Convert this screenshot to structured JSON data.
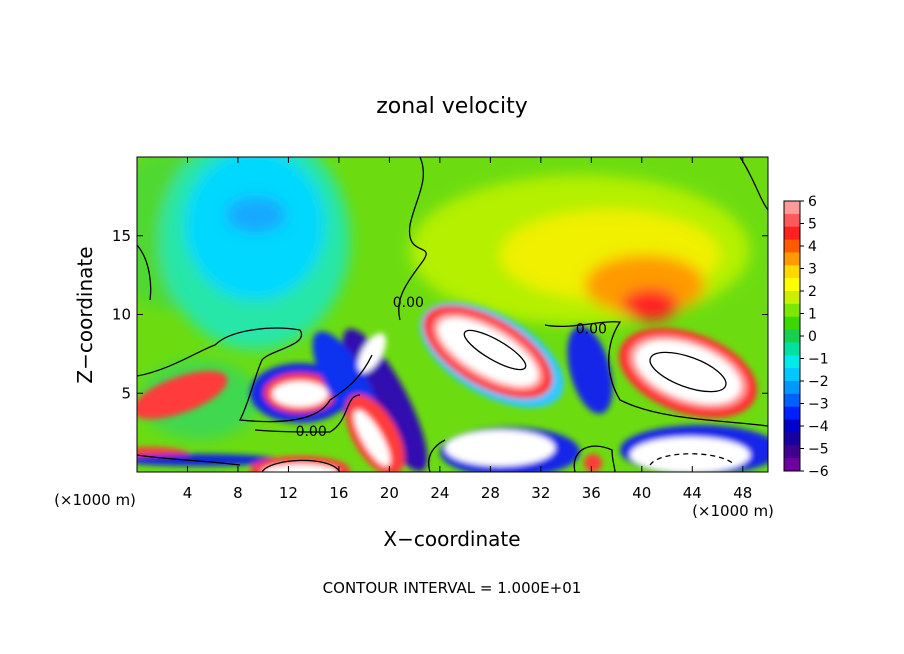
{
  "chart_data": {
    "type": "heatmap",
    "title": "zonal velocity",
    "xlabel": "X−coordinate",
    "ylabel": "Z−coordinate",
    "x_unit_left": "(×1000 m)",
    "x_unit_right": "(×1000 m)",
    "xlim": [
      0,
      50
    ],
    "ylim": [
      0,
      20
    ],
    "x_ticks": [
      4,
      8,
      12,
      16,
      20,
      24,
      28,
      32,
      36,
      40,
      44,
      48
    ],
    "y_ticks": [
      5,
      10,
      15
    ],
    "footer": "CONTOUR INTERVAL = 1.000E+01",
    "contour_label": "0.00",
    "contour_label_points": [
      {
        "x": 21.5,
        "y": 10.8
      },
      {
        "x": 36.0,
        "y": 9.1
      },
      {
        "x": 13.8,
        "y": 2.6
      }
    ],
    "colorbar": {
      "labels": [
        "6",
        "5",
        "4",
        "3",
        "2",
        "1",
        "0",
        "−1",
        "−2",
        "−3",
        "−4",
        "−5",
        "−6"
      ],
      "colors": [
        "#ff9a9a",
        "#ff5a5a",
        "#ff2020",
        "#ff5a00",
        "#ff9a00",
        "#ffd800",
        "#ffff00",
        "#c8f000",
        "#7ee600",
        "#3cd800",
        "#18d050",
        "#00e0a0",
        "#00eaea",
        "#00c8ff",
        "#0098ff",
        "#0060ff",
        "#0020ff",
        "#0000c8",
        "#1800a0",
        "#400090",
        "#7000a0"
      ]
    },
    "features": [
      {
        "kind": "strong positive core",
        "x": 27,
        "y": 7,
        "value": 6
      },
      {
        "kind": "strong positive core",
        "x": 43,
        "y": 6.5,
        "value": 6
      },
      {
        "kind": "strong positive core",
        "x": 13,
        "y": 5,
        "value": 6
      },
      {
        "kind": "strong positive core",
        "x": 20.5,
        "y": 7.5,
        "value": 6
      },
      {
        "kind": "strong positive core",
        "x": 20,
        "y": 2.5,
        "value": 6
      },
      {
        "kind": "strong positive core",
        "x": 29,
        "y": 1.5,
        "value": 6
      },
      {
        "kind": "strong positive core",
        "x": 13,
        "y": 0.5,
        "value": 6
      },
      {
        "kind": "strong positive core",
        "x": 42.5,
        "y": 0.8,
        "value": 6
      },
      {
        "kind": "positive maximum",
        "x": 40.5,
        "y": 10.5,
        "value": 5
      },
      {
        "kind": "negative region",
        "x": 10,
        "y": 16,
        "value": -3
      },
      {
        "kind": "negative band",
        "x": 18,
        "y": 5,
        "value": -5
      },
      {
        "kind": "negative band",
        "x": 35,
        "y": 7,
        "value": -4
      },
      {
        "kind": "negative band",
        "x": 41,
        "y": 2.8,
        "value": -5
      }
    ]
  }
}
